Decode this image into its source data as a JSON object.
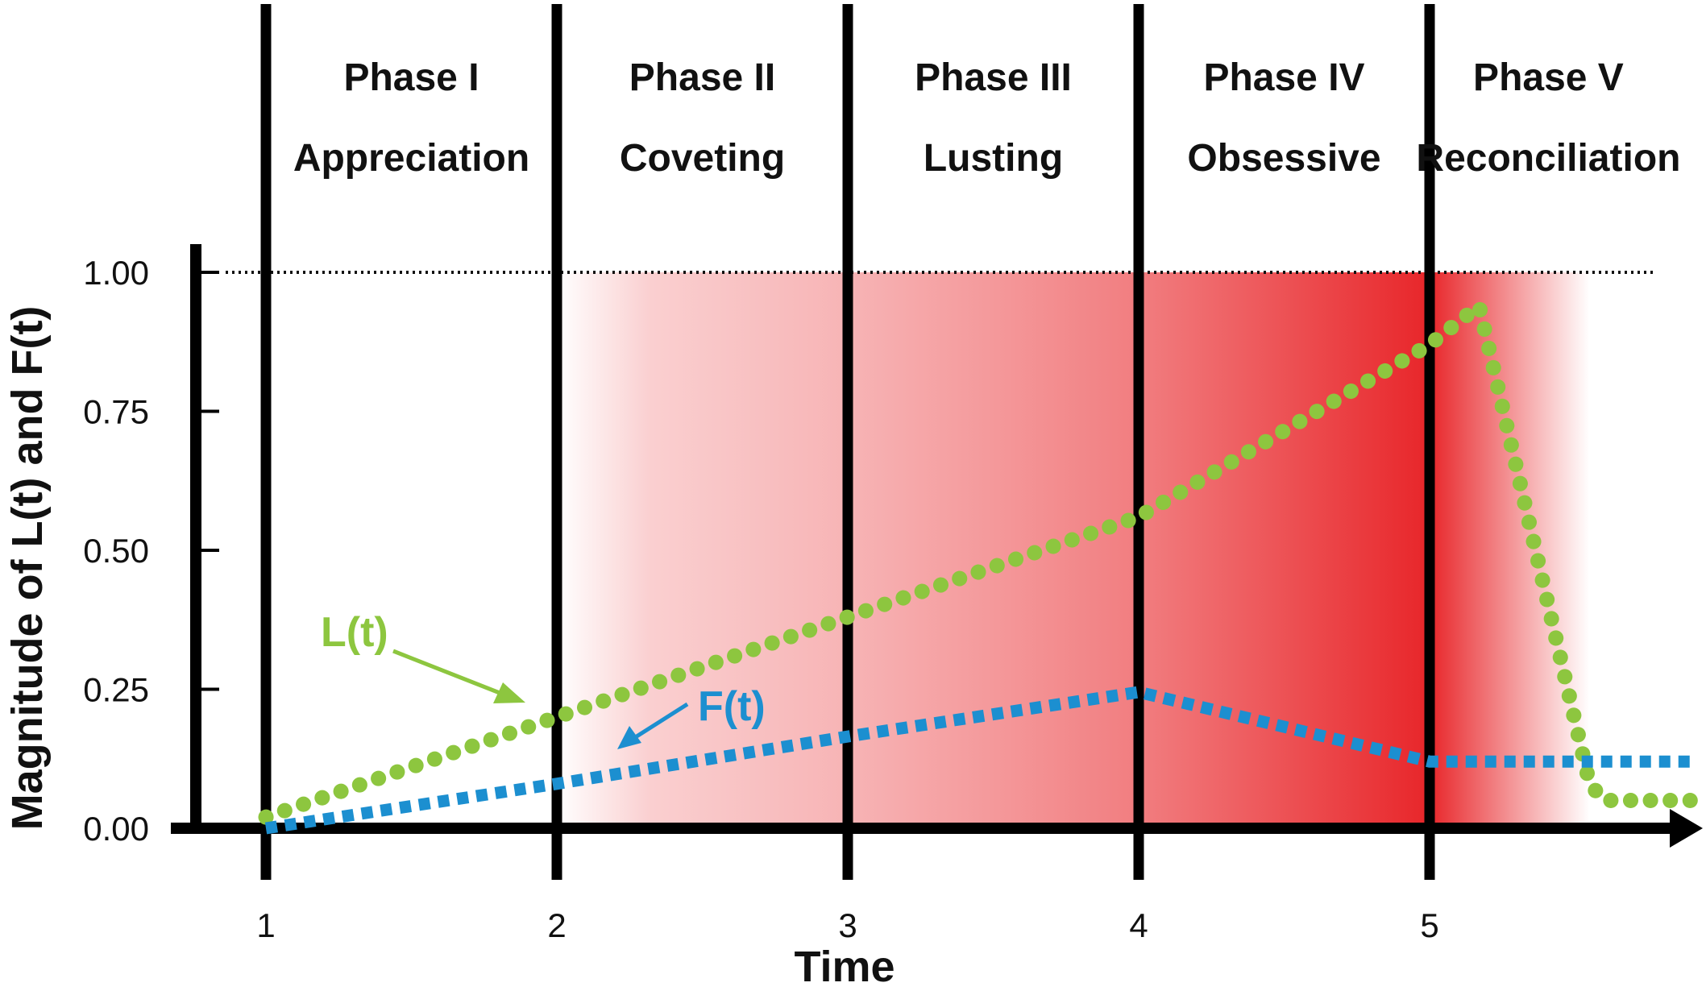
{
  "chart_data": {
    "type": "line",
    "xlabel": "Time",
    "ylabel": "Magnitude of  L(t) and  F(t)",
    "xlim": [
      0.7,
      5.95
    ],
    "ylim": [
      0,
      1.0
    ],
    "x_ticks": [
      "1",
      "2",
      "3",
      "4",
      "5"
    ],
    "y_ticks": [
      "0.00",
      "0.25",
      "0.50",
      "0.75",
      "1.00"
    ],
    "reference_line": {
      "y": 1.0,
      "style": "dotted"
    },
    "grid": false,
    "phases": [
      {
        "title": "Phase I",
        "name": "Appreciation",
        "start": 1,
        "end": 2
      },
      {
        "title": "Phase II",
        "name": "Coveting",
        "start": 2,
        "end": 3
      },
      {
        "title": "Phase III",
        "name": "Lusting",
        "start": 3,
        "end": 4
      },
      {
        "title": "Phase IV",
        "name": "Obsessive",
        "start": 4,
        "end": 5
      },
      {
        "title": "Phase V",
        "name": "Reconciliation",
        "start": 5,
        "end": 5.9
      }
    ],
    "shading": {
      "color": "#e8262a",
      "start": 2,
      "peak": 5,
      "end": 5.55,
      "ymax": 1.0
    },
    "series": [
      {
        "name": "L(t)",
        "color": "#8dc63f",
        "style": "dots",
        "x": [
          1.0,
          2.0,
          3.0,
          4.0,
          5.0,
          5.17,
          5.55,
          5.6,
          5.9
        ],
        "y": [
          0.02,
          0.2,
          0.38,
          0.56,
          0.87,
          0.94,
          0.08,
          0.05,
          0.05
        ]
      },
      {
        "name": "F(t)",
        "color": "#1c8fd0",
        "style": "dashed",
        "x": [
          1.0,
          2.0,
          3.0,
          4.0,
          5.0,
          5.9
        ],
        "y": [
          0.0,
          0.08,
          0.165,
          0.245,
          0.12,
          0.12
        ]
      }
    ]
  }
}
